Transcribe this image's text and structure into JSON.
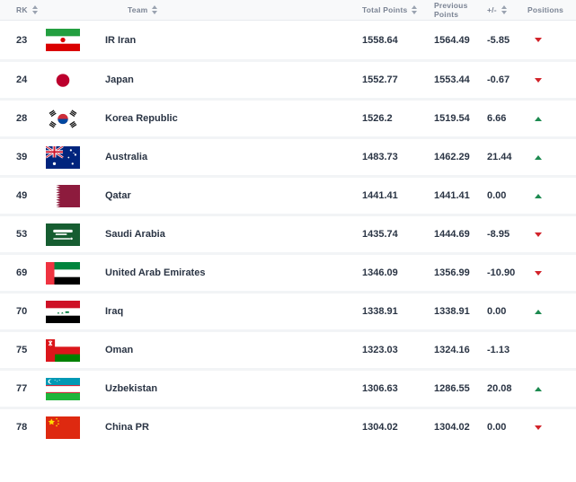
{
  "table": {
    "columns": [
      {
        "key": "rank",
        "label": "RK",
        "sortable": true
      },
      {
        "key": "team",
        "label": "Team",
        "sortable": true
      },
      {
        "key": "total",
        "label": "Total Points",
        "sortable": true
      },
      {
        "key": "previous",
        "label": "Previous Points",
        "sortable": false
      },
      {
        "key": "change",
        "label": "+/-",
        "sortable": true
      },
      {
        "key": "positions",
        "label": "Positions",
        "sortable": false
      }
    ],
    "rows": [
      {
        "rank": "23",
        "team": "IR Iran",
        "flag": "iran",
        "total": "1558.64",
        "previous": "1564.49",
        "change": "-5.85",
        "trend": "down"
      },
      {
        "rank": "24",
        "team": "Japan",
        "flag": "japan",
        "total": "1552.77",
        "previous": "1553.44",
        "change": "-0.67",
        "trend": "down"
      },
      {
        "rank": "28",
        "team": "Korea Republic",
        "flag": "korea",
        "total": "1526.2",
        "previous": "1519.54",
        "change": "6.66",
        "trend": "up"
      },
      {
        "rank": "39",
        "team": "Australia",
        "flag": "australia",
        "total": "1483.73",
        "previous": "1462.29",
        "change": "21.44",
        "trend": "up"
      },
      {
        "rank": "49",
        "team": "Qatar",
        "flag": "qatar",
        "total": "1441.41",
        "previous": "1441.41",
        "change": "0.00",
        "trend": "up"
      },
      {
        "rank": "53",
        "team": "Saudi Arabia",
        "flag": "saudi_arabia",
        "total": "1435.74",
        "previous": "1444.69",
        "change": "-8.95",
        "trend": "down"
      },
      {
        "rank": "69",
        "team": "United Arab Emirates",
        "flag": "uae",
        "total": "1346.09",
        "previous": "1356.99",
        "change": "-10.90",
        "trend": "down"
      },
      {
        "rank": "70",
        "team": "Iraq",
        "flag": "iraq",
        "total": "1338.91",
        "previous": "1338.91",
        "change": "0.00",
        "trend": "up"
      },
      {
        "rank": "75",
        "team": "Oman",
        "flag": "oman",
        "total": "1323.03",
        "previous": "1324.16",
        "change": "-1.13",
        "trend": "none"
      },
      {
        "rank": "77",
        "team": "Uzbekistan",
        "flag": "uzbekistan",
        "total": "1306.63",
        "previous": "1286.55",
        "change": "20.08",
        "trend": "up"
      },
      {
        "rank": "78",
        "team": "China PR",
        "flag": "china",
        "total": "1304.02",
        "previous": "1304.02",
        "change": "0.00",
        "trend": "down"
      }
    ],
    "icons": {
      "sort": "sort-icon",
      "trend_up": "trend-up-icon",
      "trend_down": "trend-down-icon"
    },
    "colors": {
      "trend_up": "#1d8a50",
      "trend_down": "#d2232a",
      "row_text": "#2a3444",
      "header_text": "#7b8494",
      "header_bg": "#f8f9fa",
      "row_separator": "#f2f4f6"
    }
  }
}
